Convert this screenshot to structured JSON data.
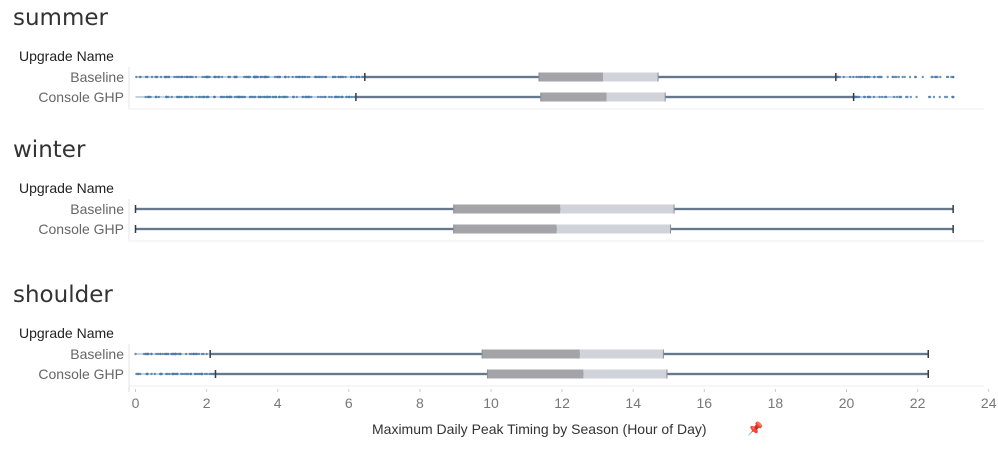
{
  "panels": [
    {
      "title": "summer",
      "field_header": "Upgrade Name",
      "rows": [
        "Baseline",
        "Console GHP"
      ]
    },
    {
      "title": "winter",
      "field_header": "Upgrade Name",
      "rows": [
        "Baseline",
        "Console GHP"
      ]
    },
    {
      "title": "shoulder",
      "field_header": "Upgrade Name",
      "rows": [
        "Baseline",
        "Console GHP"
      ]
    }
  ],
  "x_axis_title": "Maximum Daily Peak Timing by Season (Hour of Day)",
  "pin_icon": "pin-icon",
  "colors": {
    "whisker_line": "#4a5b6e",
    "outlier_dot": "#4e79a7",
    "box_lower": "#a3a3a8",
    "box_upper": "#d0d3d9",
    "axis_text": "#777777"
  },
  "chart_data": {
    "type": "boxplot",
    "xlabel": "Maximum Daily Peak Timing by Season (Hour of Day)",
    "xlim": [
      -0.3,
      24.3
    ],
    "xticks": [
      0,
      2,
      4,
      6,
      8,
      10,
      12,
      14,
      16,
      18,
      20,
      22,
      24
    ],
    "groups": [
      {
        "season": "summer",
        "series": [
          {
            "name": "Baseline",
            "min": 0,
            "lower_whisker": 6.45,
            "q1": 11.35,
            "median": 13.15,
            "q3": 14.7,
            "upper_whisker": 19.7,
            "max": 23.0
          },
          {
            "name": "Console GHP",
            "min": 0,
            "lower_whisker": 6.2,
            "q1": 11.4,
            "median": 13.25,
            "q3": 14.9,
            "upper_whisker": 20.2,
            "max": 23.0
          }
        ]
      },
      {
        "season": "winter",
        "series": [
          {
            "name": "Baseline",
            "min": 0,
            "lower_whisker": 0,
            "q1": 8.95,
            "median": 11.95,
            "q3": 15.15,
            "upper_whisker": 23.0,
            "max": 23.0
          },
          {
            "name": "Console GHP",
            "min": 0,
            "lower_whisker": 0,
            "q1": 8.95,
            "median": 11.85,
            "q3": 15.05,
            "upper_whisker": 23.0,
            "max": 23.0
          }
        ]
      },
      {
        "season": "shoulder",
        "series": [
          {
            "name": "Baseline",
            "min": 0,
            "lower_whisker": 2.1,
            "q1": 9.75,
            "median": 12.5,
            "q3": 14.85,
            "upper_whisker": 22.3,
            "max": 22.3
          },
          {
            "name": "Console GHP",
            "min": 0,
            "lower_whisker": 2.25,
            "q1": 9.9,
            "median": 12.6,
            "q3": 14.95,
            "upper_whisker": 22.3,
            "max": 22.3
          }
        ]
      }
    ]
  }
}
